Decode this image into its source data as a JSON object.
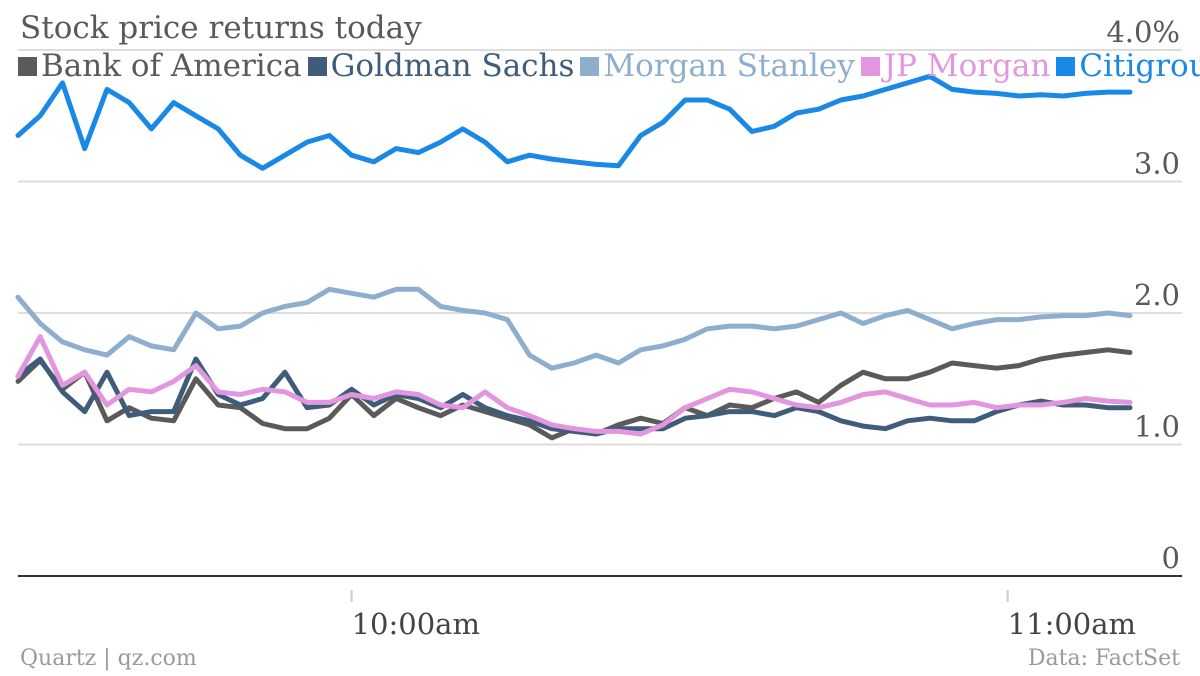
{
  "footer": {
    "source_left": "Quartz | qz.com",
    "source_right": "Data: FactSet"
  },
  "chart_data": {
    "type": "line",
    "title": "Stock price returns today",
    "ylim": [
      0,
      4.0
    ],
    "yticks": [
      {
        "value": 0,
        "label": "0"
      },
      {
        "value": 1.0,
        "label": "1.0"
      },
      {
        "value": 2.0,
        "label": "2.0"
      },
      {
        "value": 3.0,
        "label": "3.0"
      },
      {
        "value": 4.0,
        "label": "4.0%"
      }
    ],
    "xlim": [
      0,
      100
    ],
    "xticks": [
      {
        "x": 30,
        "label": "10:00am"
      },
      {
        "x": 89,
        "label": "11:00am"
      }
    ],
    "grid": true,
    "legend_position": "top-left",
    "series": [
      {
        "name": "Bank of America",
        "color": "#5a5a5a",
        "x": [
          0,
          2,
          4,
          6,
          8,
          10,
          12,
          14,
          16,
          18,
          20,
          22,
          24,
          26,
          28,
          30,
          32,
          34,
          36,
          38,
          40,
          42,
          44,
          46,
          48,
          50,
          52,
          54,
          56,
          58,
          60,
          62,
          64,
          66,
          68,
          70,
          72,
          74,
          76,
          78,
          80,
          82,
          84,
          86,
          88,
          90,
          92,
          94,
          96,
          98,
          100
        ],
        "values": [
          1.48,
          1.64,
          1.42,
          1.55,
          1.18,
          1.28,
          1.2,
          1.18,
          1.5,
          1.3,
          1.28,
          1.16,
          1.12,
          1.12,
          1.2,
          1.38,
          1.22,
          1.35,
          1.28,
          1.22,
          1.3,
          1.25,
          1.2,
          1.15,
          1.05,
          1.12,
          1.08,
          1.15,
          1.2,
          1.16,
          1.28,
          1.22,
          1.3,
          1.28,
          1.35,
          1.4,
          1.32,
          1.45,
          1.55,
          1.5,
          1.5,
          1.55,
          1.62,
          1.6,
          1.58,
          1.6,
          1.65,
          1.68,
          1.7,
          1.72,
          1.7
        ]
      },
      {
        "name": "Goldman Sachs",
        "color": "#3f5d7a",
        "x": [
          0,
          2,
          4,
          6,
          8,
          10,
          12,
          14,
          16,
          18,
          20,
          22,
          24,
          26,
          28,
          30,
          32,
          34,
          36,
          38,
          40,
          42,
          44,
          46,
          48,
          50,
          52,
          54,
          56,
          58,
          60,
          62,
          64,
          66,
          68,
          70,
          72,
          74,
          76,
          78,
          80,
          82,
          84,
          86,
          88,
          90,
          92,
          94,
          96,
          98,
          100
        ],
        "values": [
          1.52,
          1.65,
          1.4,
          1.25,
          1.55,
          1.22,
          1.25,
          1.25,
          1.65,
          1.38,
          1.3,
          1.35,
          1.55,
          1.28,
          1.3,
          1.42,
          1.3,
          1.38,
          1.35,
          1.28,
          1.38,
          1.28,
          1.22,
          1.18,
          1.12,
          1.1,
          1.08,
          1.12,
          1.12,
          1.12,
          1.2,
          1.22,
          1.25,
          1.25,
          1.22,
          1.28,
          1.25,
          1.18,
          1.14,
          1.12,
          1.18,
          1.2,
          1.18,
          1.18,
          1.25,
          1.3,
          1.33,
          1.3,
          1.3,
          1.28,
          1.28
        ]
      },
      {
        "name": "Morgan Stanley",
        "color": "#8eaecf",
        "x": [
          0,
          2,
          4,
          6,
          8,
          10,
          12,
          14,
          16,
          18,
          20,
          22,
          24,
          26,
          28,
          30,
          32,
          34,
          36,
          38,
          40,
          42,
          44,
          46,
          48,
          50,
          52,
          54,
          56,
          58,
          60,
          62,
          64,
          66,
          68,
          70,
          72,
          74,
          76,
          78,
          80,
          82,
          84,
          86,
          88,
          90,
          92,
          94,
          96,
          98,
          100
        ],
        "values": [
          2.12,
          1.92,
          1.78,
          1.72,
          1.68,
          1.82,
          1.75,
          1.72,
          2.0,
          1.88,
          1.9,
          2.0,
          2.05,
          2.08,
          2.18,
          2.15,
          2.12,
          2.18,
          2.18,
          2.05,
          2.02,
          2.0,
          1.95,
          1.68,
          1.58,
          1.62,
          1.68,
          1.62,
          1.72,
          1.75,
          1.8,
          1.88,
          1.9,
          1.9,
          1.88,
          1.9,
          1.95,
          2.0,
          1.92,
          1.98,
          2.02,
          1.95,
          1.88,
          1.92,
          1.95,
          1.95,
          1.97,
          1.98,
          1.98,
          2.0,
          1.98
        ]
      },
      {
        "name": "JP Morgan",
        "color": "#e396e0",
        "x": [
          0,
          2,
          4,
          6,
          8,
          10,
          12,
          14,
          16,
          18,
          20,
          22,
          24,
          26,
          28,
          30,
          32,
          34,
          36,
          38,
          40,
          42,
          44,
          46,
          48,
          50,
          52,
          54,
          56,
          58,
          60,
          62,
          64,
          66,
          68,
          70,
          72,
          74,
          76,
          78,
          80,
          82,
          84,
          86,
          88,
          90,
          92,
          94,
          96,
          98,
          100
        ],
        "values": [
          1.52,
          1.82,
          1.45,
          1.55,
          1.3,
          1.42,
          1.4,
          1.48,
          1.6,
          1.4,
          1.38,
          1.42,
          1.4,
          1.32,
          1.32,
          1.38,
          1.35,
          1.4,
          1.38,
          1.3,
          1.28,
          1.4,
          1.28,
          1.22,
          1.15,
          1.12,
          1.1,
          1.1,
          1.08,
          1.15,
          1.28,
          1.35,
          1.42,
          1.4,
          1.35,
          1.3,
          1.28,
          1.32,
          1.38,
          1.4,
          1.35,
          1.3,
          1.3,
          1.32,
          1.28,
          1.3,
          1.3,
          1.32,
          1.35,
          1.33,
          1.32
        ]
      },
      {
        "name": "Citigroup",
        "color": "#1a88e6",
        "x": [
          0,
          2,
          4,
          6,
          8,
          10,
          12,
          14,
          16,
          18,
          20,
          22,
          24,
          26,
          28,
          30,
          32,
          34,
          36,
          38,
          40,
          42,
          44,
          46,
          48,
          50,
          52,
          54,
          56,
          58,
          60,
          62,
          64,
          66,
          68,
          70,
          72,
          74,
          76,
          78,
          80,
          82,
          84,
          86,
          88,
          90,
          92,
          94,
          96,
          98,
          100
        ],
        "values": [
          3.35,
          3.5,
          3.75,
          3.25,
          3.7,
          3.6,
          3.4,
          3.6,
          3.5,
          3.4,
          3.2,
          3.1,
          3.2,
          3.3,
          3.35,
          3.2,
          3.15,
          3.25,
          3.22,
          3.3,
          3.4,
          3.3,
          3.15,
          3.2,
          3.17,
          3.15,
          3.13,
          3.12,
          3.35,
          3.45,
          3.62,
          3.62,
          3.55,
          3.38,
          3.42,
          3.52,
          3.55,
          3.62,
          3.65,
          3.7,
          3.75,
          3.8,
          3.7,
          3.68,
          3.67,
          3.65,
          3.66,
          3.65,
          3.67,
          3.68,
          3.68
        ]
      }
    ]
  }
}
